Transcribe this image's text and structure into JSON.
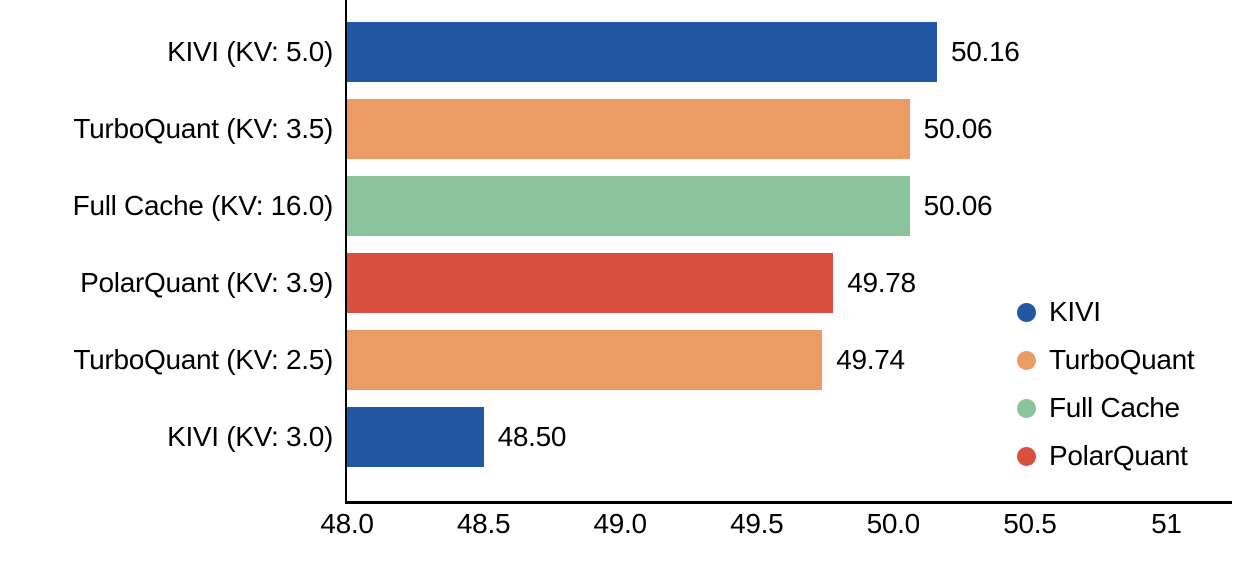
{
  "chart_data": {
    "type": "bar",
    "orientation": "horizontal",
    "bars": [
      {
        "category": "KIVI (KV: 5.0)",
        "method": "KIVI",
        "value": 50.16,
        "value_label": "50.16"
      },
      {
        "category": "TurboQuant (KV: 3.5)",
        "method": "TurboQuant",
        "value": 50.06,
        "value_label": "50.06"
      },
      {
        "category": "Full Cache (KV: 16.0)",
        "method": "Full Cache",
        "value": 50.06,
        "value_label": "50.06"
      },
      {
        "category": "PolarQuant (KV: 3.9)",
        "method": "PolarQuant",
        "value": 49.78,
        "value_label": "49.78"
      },
      {
        "category": "TurboQuant (KV: 2.5)",
        "method": "TurboQuant",
        "value": 49.74,
        "value_label": "49.74"
      },
      {
        "category": "KIVI (KV: 3.0)",
        "method": "KIVI",
        "value": 48.5,
        "value_label": "48.50"
      }
    ],
    "xlim": [
      48.0,
      51.24
    ],
    "xticks": [
      48.0,
      48.5,
      49.0,
      49.5,
      50.0,
      50.5,
      51.0
    ],
    "xtick_labels": [
      "48.0",
      "48.5",
      "49.0",
      "49.5",
      "50.0",
      "50.5",
      "51"
    ],
    "grid": false,
    "legend": {
      "position": "right-inside",
      "entries": [
        {
          "label": "KIVI",
          "color": "#2257a4"
        },
        {
          "label": "TurboQuant",
          "color": "#eb9c64"
        },
        {
          "label": "Full Cache",
          "color": "#8bc49c"
        },
        {
          "label": "PolarQuant",
          "color": "#d9503f"
        }
      ]
    },
    "colors": {
      "axis": "#000000",
      "text": "#000000",
      "background": "#ffffff"
    }
  }
}
